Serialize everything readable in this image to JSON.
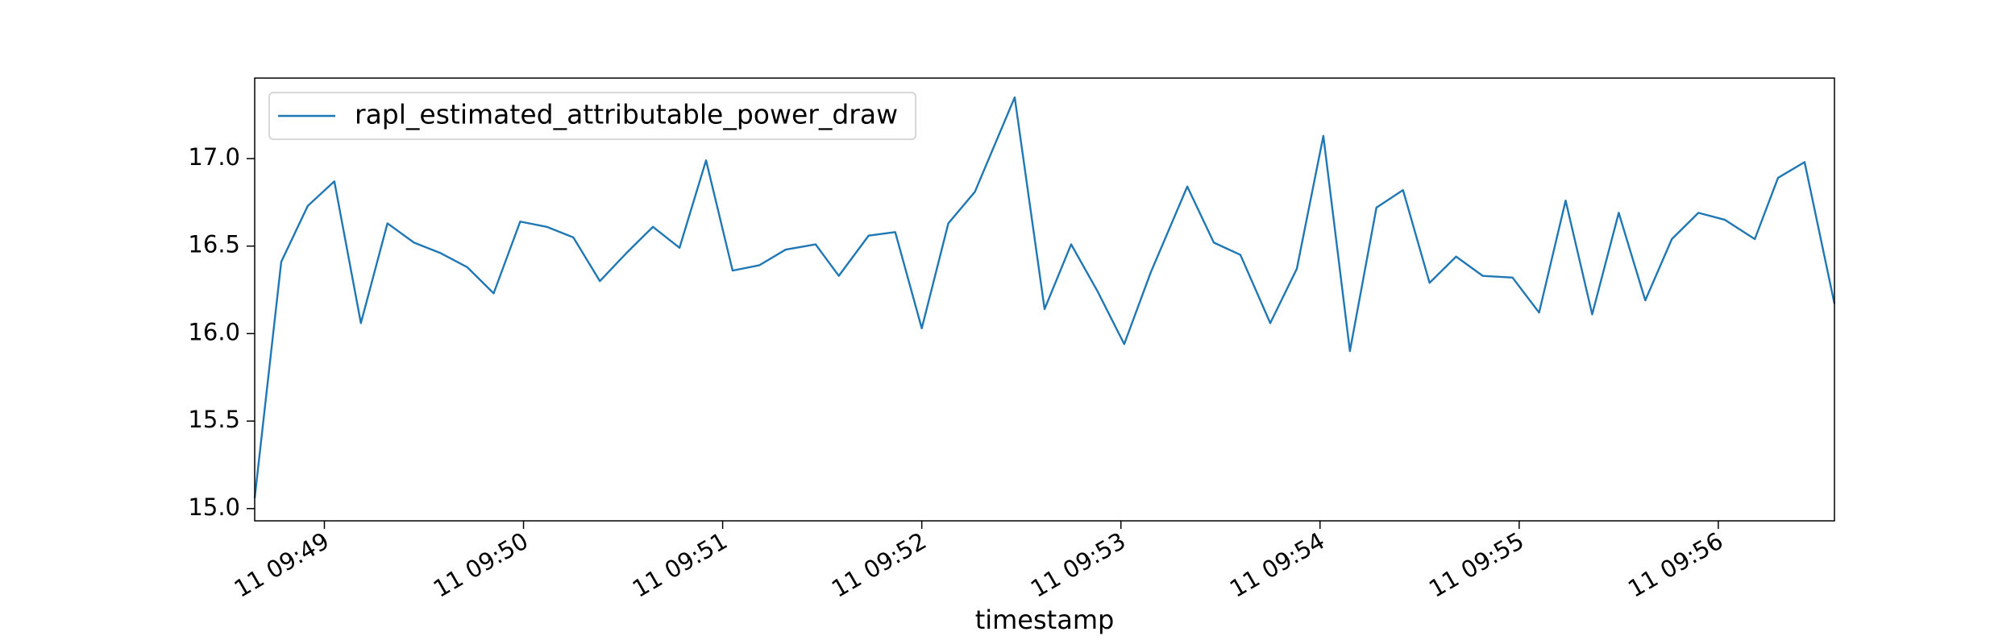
{
  "chart_data": {
    "type": "line",
    "xlabel": "timestamp",
    "x": [
      "09:48:39",
      "09:48:47",
      "09:48:55",
      "09:49:03",
      "09:49:11",
      "09:49:19",
      "09:49:27",
      "09:49:35",
      "09:49:43",
      "09:49:51",
      "09:49:59",
      "09:50:07",
      "09:50:15",
      "09:50:23",
      "09:50:31",
      "09:50:39",
      "09:50:47",
      "09:50:55",
      "09:51:03",
      "09:51:11",
      "09:51:19",
      "09:51:28",
      "09:51:35",
      "09:51:44",
      "09:51:52",
      "09:52:00",
      "09:52:08",
      "09:52:16",
      "09:52:28",
      "09:52:37",
      "09:52:45",
      "09:52:53",
      "09:53:01",
      "09:53:09",
      "09:53:20",
      "09:53:28",
      "09:53:36",
      "09:53:45",
      "09:53:53",
      "09:54:01",
      "09:54:09",
      "09:54:17",
      "09:54:25",
      "09:54:33",
      "09:54:41",
      "09:54:49",
      "09:54:58",
      "09:55:06",
      "09:55:14",
      "09:55:22",
      "09:55:30",
      "09:55:38",
      "09:55:46",
      "09:55:54",
      "09:56:02",
      "09:56:11",
      "09:56:18",
      "09:56:26",
      "09:56:35"
    ],
    "series": [
      {
        "name": "rapl_estimated_attributable_power_draw",
        "color": "#1f77b4",
        "values": [
          15.06,
          16.41,
          16.73,
          16.87,
          16.06,
          16.63,
          16.52,
          16.46,
          16.38,
          16.23,
          16.64,
          16.61,
          16.55,
          16.3,
          16.46,
          16.61,
          16.49,
          16.99,
          16.36,
          16.39,
          16.48,
          16.51,
          16.33,
          16.56,
          16.58,
          16.03,
          16.63,
          16.81,
          17.35,
          16.14,
          16.51,
          16.24,
          15.94,
          16.35,
          16.84,
          16.52,
          16.45,
          16.06,
          16.37,
          17.13,
          15.9,
          16.72,
          16.82,
          16.29,
          16.44,
          16.33,
          16.32,
          16.12,
          16.76,
          16.11,
          16.69,
          16.19,
          16.54,
          16.69,
          16.65,
          16.54,
          16.89,
          16.98,
          16.17
        ]
      }
    ],
    "xlim": [
      "09:48:39",
      "09:56:35"
    ],
    "xticks": [
      {
        "value": "09:49:00",
        "label": "11 09:49"
      },
      {
        "value": "09:50:00",
        "label": "11 09:50"
      },
      {
        "value": "09:51:00",
        "label": "11 09:51"
      },
      {
        "value": "09:52:00",
        "label": "11 09:52"
      },
      {
        "value": "09:53:00",
        "label": "11 09:53"
      },
      {
        "value": "09:54:00",
        "label": "11 09:54"
      },
      {
        "value": "09:55:00",
        "label": "11 09:55"
      },
      {
        "value": "09:56:00",
        "label": "11 09:56"
      }
    ],
    "ylim": [
      14.93,
      17.46
    ],
    "yticks": [
      {
        "value": 15,
        "label": "15.0"
      },
      {
        "value": 15.5,
        "label": "15.5"
      },
      {
        "value": 16,
        "label": "16.0"
      },
      {
        "value": 16.5,
        "label": "16.5"
      },
      {
        "value": 17,
        "label": "17.0"
      }
    ],
    "legend": "upper left"
  }
}
